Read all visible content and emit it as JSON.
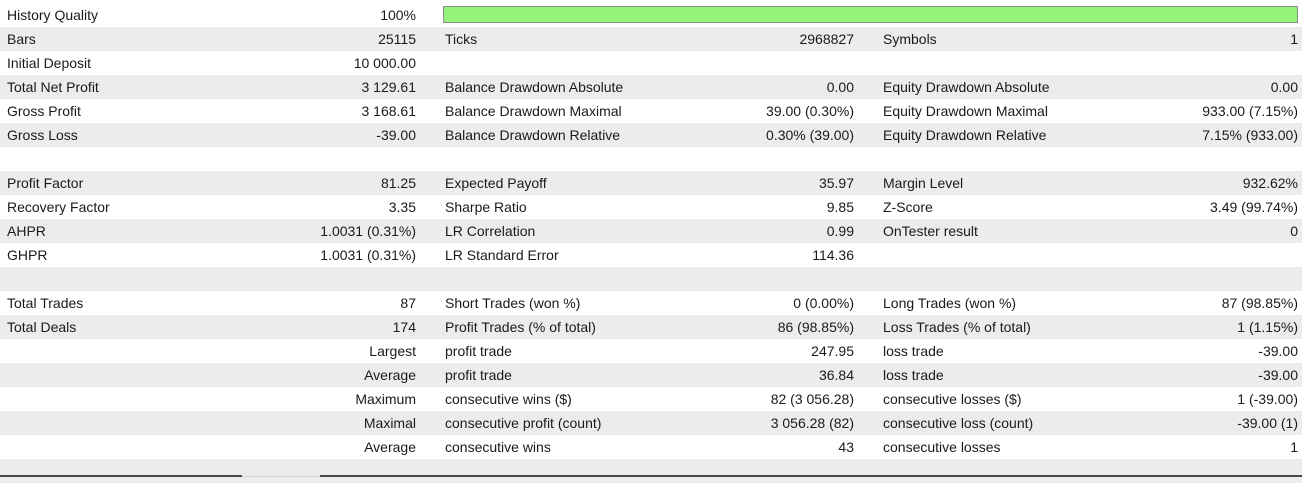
{
  "summary": {
    "history_quality_label": "History Quality",
    "history_quality_value": "100%",
    "history_quality_fraction": 1.0,
    "history_quality_color": "#93f37a",
    "rows": [
      {
        "c1l": "Bars",
        "c1v": "25115",
        "c2l": "Ticks",
        "c2v": "2968827",
        "c3l": "Symbols",
        "c3v": "1"
      },
      {
        "c1l": "Initial Deposit",
        "c1v": "10 000.00",
        "c2l": "",
        "c2v": "",
        "c3l": "",
        "c3v": ""
      },
      {
        "c1l": "Total Net Profit",
        "c1v": "3 129.61",
        "c2l": "Balance Drawdown Absolute",
        "c2v": "0.00",
        "c3l": "Equity Drawdown Absolute",
        "c3v": "0.00"
      },
      {
        "c1l": "Gross Profit",
        "c1v": "3 168.61",
        "c2l": "Balance Drawdown Maximal",
        "c2v": "39.00 (0.30%)",
        "c3l": "Equity Drawdown Maximal",
        "c3v": "933.00 (7.15%)"
      },
      {
        "c1l": "Gross Loss",
        "c1v": "-39.00",
        "c2l": "Balance Drawdown Relative",
        "c2v": "0.30% (39.00)",
        "c3l": "Equity Drawdown Relative",
        "c3v": "7.15% (933.00)"
      },
      {
        "c1l": "",
        "c1v": "",
        "c2l": "",
        "c2v": "",
        "c3l": "",
        "c3v": ""
      },
      {
        "c1l": "Profit Factor",
        "c1v": "81.25",
        "c2l": "Expected Payoff",
        "c2v": "35.97",
        "c3l": "Margin Level",
        "c3v": "932.62%"
      },
      {
        "c1l": "Recovery Factor",
        "c1v": "3.35",
        "c2l": "Sharpe Ratio",
        "c2v": "9.85",
        "c3l": "Z-Score",
        "c3v": "3.49 (99.74%)"
      },
      {
        "c1l": "AHPR",
        "c1v": "1.0031 (0.31%)",
        "c2l": "LR Correlation",
        "c2v": "0.99",
        "c3l": "OnTester result",
        "c3v": "0"
      },
      {
        "c1l": "GHPR",
        "c1v": "1.0031 (0.31%)",
        "c2l": "LR Standard Error",
        "c2v": "114.36",
        "c3l": "",
        "c3v": ""
      },
      {
        "c1l": "",
        "c1v": "",
        "c2l": "",
        "c2v": "",
        "c3l": "",
        "c3v": ""
      },
      {
        "c1l": "Total Trades",
        "c1v": "87",
        "c2l": "Short Trades (won %)",
        "c2v": "0 (0.00%)",
        "c3l": "Long Trades (won %)",
        "c3v": "87 (98.85%)"
      },
      {
        "c1l": "Total Deals",
        "c1v": "174",
        "c2l": "Profit Trades (% of total)",
        "c2v": "86 (98.85%)",
        "c3l": "Loss Trades (% of total)",
        "c3v": "1 (1.15%)"
      },
      {
        "c1l": "",
        "c1v": "Largest",
        "c2l": "profit trade",
        "c2v": "247.95",
        "c3l": "loss trade",
        "c3v": "-39.00"
      },
      {
        "c1l": "",
        "c1v": "Average",
        "c2l": "profit trade",
        "c2v": "36.84",
        "c3l": "loss trade",
        "c3v": "-39.00"
      },
      {
        "c1l": "",
        "c1v": "Maximum",
        "c2l": "consecutive wins ($)",
        "c2v": "82 (3 056.28)",
        "c3l": "consecutive losses ($)",
        "c3v": "1 (-39.00)"
      },
      {
        "c1l": "",
        "c1v": "Maximal",
        "c2l": "consecutive profit (count)",
        "c2v": "3 056.28 (82)",
        "c3l": "consecutive loss (count)",
        "c3v": "-39.00 (1)"
      },
      {
        "c1l": "",
        "c1v": "Average",
        "c2l": "consecutive wins",
        "c2v": "43",
        "c3l": "consecutive losses",
        "c3v": "1"
      },
      {
        "c1l": "",
        "c1v": "",
        "c2l": "",
        "c2v": "",
        "c3l": "",
        "c3v": ""
      }
    ]
  }
}
